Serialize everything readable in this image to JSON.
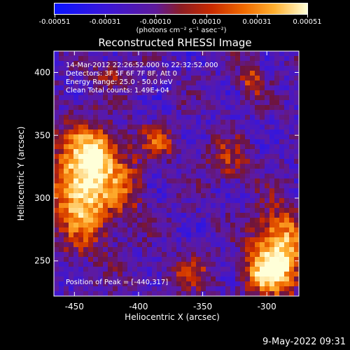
{
  "chart_data": {
    "type": "heatmap",
    "title": "Reconstructed RHESSI Image",
    "xlabel": "Heliocentric X (arcsec)",
    "ylabel": "Heliocentric Y (arcsec)",
    "xlim": [
      -466,
      -275
    ],
    "ylim": [
      222,
      417
    ],
    "x_ticks": [
      -450,
      -400,
      -350,
      -300
    ],
    "y_ticks": [
      250,
      300,
      350,
      400
    ],
    "colorbar": {
      "ticks": [
        "-0.00051",
        "-0.00031",
        "-0.00010",
        "0.00010",
        "0.00031",
        "0.00051"
      ],
      "units_text": "(photons cm⁻² s⁻¹ asec⁻²)",
      "range": [
        -0.00051,
        0.00051
      ]
    },
    "info_lines": [
      "14-Mar-2012 22:26:52.000 to 22:32:52.000",
      "Detectors: 3F 5F 6F 7F 8F, Att 0",
      "Energy Range: 25.0 - 50.0 keV",
      "Clean     Total counts: 1.49E+04"
    ],
    "peak_text": "Position of Peak = [-440,317]",
    "peak": [
      -440,
      317
    ],
    "timestamp": "9-May-2022 09:31",
    "bright_sources": [
      {
        "x": -443,
        "y": 310,
        "sx": 16,
        "sy": 30,
        "amp": 1.0
      },
      {
        "x": -432,
        "y": 335,
        "sx": 10,
        "sy": 12,
        "amp": 0.55
      },
      {
        "x": -290,
        "y": 260,
        "sx": 14,
        "sy": 22,
        "amp": 0.85
      },
      {
        "x": -300,
        "y": 240,
        "sx": 12,
        "sy": 12,
        "amp": 0.6
      },
      {
        "x": -410,
        "y": 310,
        "sx": 10,
        "sy": 20,
        "amp": 0.35
      },
      {
        "x": -385,
        "y": 345,
        "sx": 10,
        "sy": 10,
        "amp": 0.4
      },
      {
        "x": -330,
        "y": 330,
        "sx": 12,
        "sy": 12,
        "amp": 0.35
      },
      {
        "x": -312,
        "y": 395,
        "sx": 6,
        "sy": 10,
        "amp": 0.45
      },
      {
        "x": -420,
        "y": 400,
        "sx": 12,
        "sy": 6,
        "amp": 0.3
      },
      {
        "x": -360,
        "y": 240,
        "sx": 14,
        "sy": 10,
        "amp": 0.3
      }
    ]
  }
}
